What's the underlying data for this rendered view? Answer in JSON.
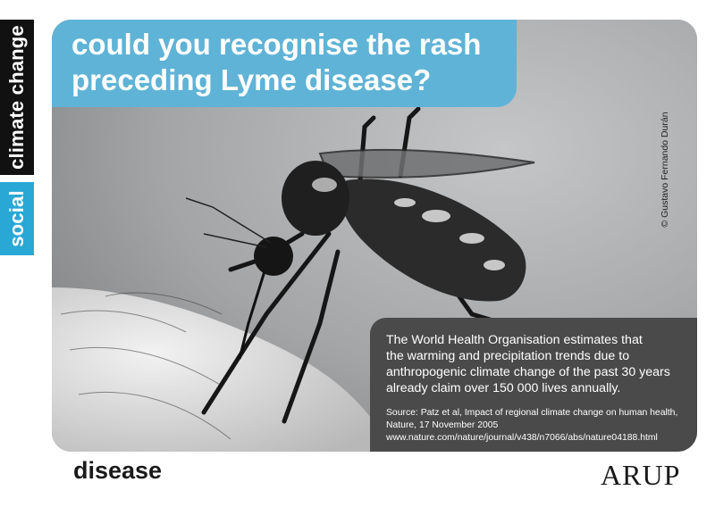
{
  "side_tab": {
    "top_label": "climate change",
    "bottom_label": "social"
  },
  "headline": {
    "line1": "could you recognise the rash",
    "line2": "preceding Lyme disease?"
  },
  "photo_credit": "© Gustavo Fernando Durán",
  "info": {
    "line1": "The World Health Organisation estimates that",
    "line2": "the warming and precipitation trends due to",
    "line3": "anthropogenic climate change of the past 30 years",
    "line4": "already claim over 150 000 lives annually.",
    "source_line1": "Source: Patz et al, Impact of regional climate change on human health,",
    "source_line2": "Nature, 17 November 2005",
    "source_line3": "www.nature.com/nature/journal/v438/n7066/abs/nature04188.html"
  },
  "footer": {
    "topic": "disease",
    "logo_text": "ARUP"
  },
  "colors": {
    "accent_blue": "#29a8d6",
    "headline_blue": "#5fb3d6",
    "info_box": "#4a4a4a"
  }
}
